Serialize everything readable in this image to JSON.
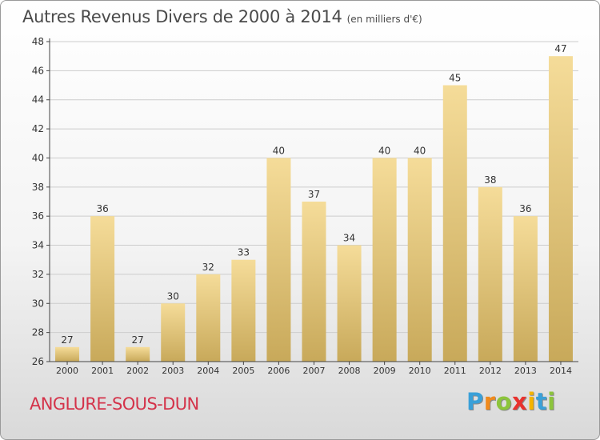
{
  "header": {
    "title": "Autres Revenus Divers de 2000 à 2014",
    "subtitle": "(en milliers d'€)"
  },
  "footer": {
    "place": "ANGLURE-SOUS-DUN",
    "logo_letters": [
      "P",
      "r",
      "o",
      "x",
      "i",
      "t",
      "i"
    ],
    "logo_colors": [
      "#3aa0d8",
      "#f08a1c",
      "#8cc43c",
      "#e8322e",
      "#f4b400",
      "#3aa0d8",
      "#8cc43c"
    ]
  },
  "colors": {
    "bar_light": "#f5dc99",
    "bar_dark": "#c8a95a",
    "axis": "#444444",
    "grid": "#cccccc",
    "text": "#333333"
  },
  "chart_data": {
    "type": "bar",
    "categories": [
      "2000",
      "2001",
      "2002",
      "2003",
      "2004",
      "2005",
      "2006",
      "2007",
      "2008",
      "2009",
      "2010",
      "2011",
      "2012",
      "2013",
      "2014"
    ],
    "values": [
      27,
      36,
      27,
      30,
      32,
      33,
      40,
      37,
      34,
      40,
      40,
      45,
      38,
      36,
      47
    ],
    "title": "Autres Revenus Divers de 2000 à 2014",
    "xlabel": "",
    "ylabel": "",
    "ylim": [
      26,
      48
    ],
    "yticks": [
      26,
      28,
      30,
      32,
      34,
      36,
      38,
      40,
      42,
      44,
      46,
      48
    ],
    "grid": true,
    "data_labels": true
  }
}
